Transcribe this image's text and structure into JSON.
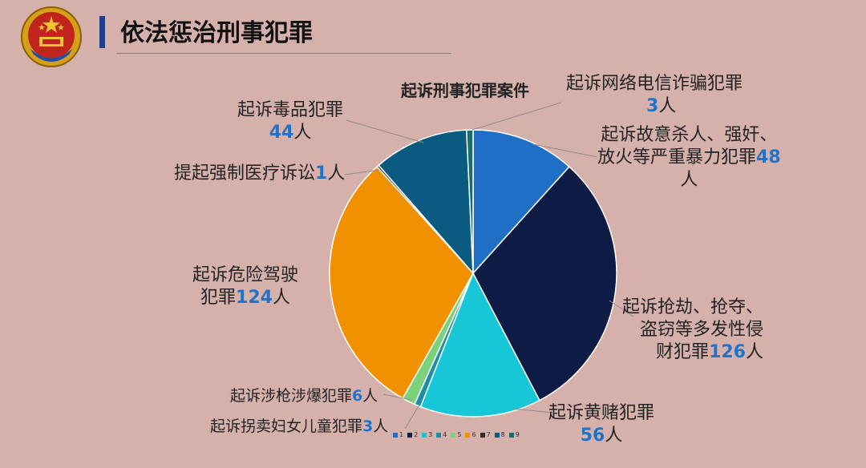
{
  "page": {
    "title": "依法惩治刑事犯罪"
  },
  "colors": {
    "number_accent": "#1f74c9",
    "title_bar": "#1f3f8a"
  },
  "chart_data": {
    "type": "pie",
    "title": "起诉刑事犯罪案件",
    "legend_position": "bottom",
    "unit": "人",
    "slices": [
      {
        "legend": "1",
        "label": "起诉故意杀人、强奸、放火等严重暴力犯罪",
        "value": 48,
        "color": "#1f6fc6"
      },
      {
        "legend": "2",
        "label": "起诉抢劫、抢夺、盗窃等多发性侵财犯罪",
        "value": 126,
        "color": "#0d1b45"
      },
      {
        "legend": "3",
        "label": "起诉黄赌犯罪",
        "value": 56,
        "color": "#17c7d8"
      },
      {
        "legend": "4",
        "label": "起诉拐卖妇女儿童犯罪",
        "value": 3,
        "color": "#1b8ea6"
      },
      {
        "legend": "5",
        "label": "起诉涉枪涉爆犯罪",
        "value": 6,
        "color": "#7cd17c"
      },
      {
        "legend": "6",
        "label": "起诉危险驾驶犯罪",
        "value": 124,
        "color": "#f29100"
      },
      {
        "legend": "7",
        "label": "提起强制医疗诉讼",
        "value": 1,
        "color": "#2e2e2e"
      },
      {
        "legend": "8",
        "label": "起诉毒品犯罪",
        "value": 44,
        "color": "#0b5a80"
      },
      {
        "legend": "9",
        "label": "起诉网络电信诈骗犯罪",
        "value": 3,
        "color": "#1a6b6b"
      }
    ],
    "data_labels": {
      "violent_a": "起诉故意杀人、强奸、",
      "violent_b": "放火等严重暴力犯罪",
      "violent_num": "48",
      "violent_unit": "人",
      "property_a": "起诉抢劫、抢夺、",
      "property_b": "盗窃等多发性侵",
      "property_c": "财犯罪",
      "property_num": "126",
      "property_unit": "人",
      "porn_a": "起诉黄赌犯罪",
      "porn_num": "56",
      "porn_unit": "人",
      "traffick_a": "起诉拐卖妇女儿童犯罪",
      "traffick_num": "3",
      "traffick_unit": "人",
      "gun_a": "起诉涉枪涉爆犯罪",
      "gun_num": "6",
      "gun_unit": "人",
      "drive_a": "起诉危险驾驶",
      "drive_b": "犯罪",
      "drive_num": "124",
      "drive_unit": "人",
      "medical_a": "提起强制医疗诉讼",
      "medical_num": "1",
      "medical_unit": "人",
      "drug_a": "起诉毒品犯罪",
      "drug_num": "44",
      "drug_unit": "人",
      "fraud_a": "起诉网络电信诈骗犯罪",
      "fraud_num": "3",
      "fraud_unit": "人"
    }
  }
}
